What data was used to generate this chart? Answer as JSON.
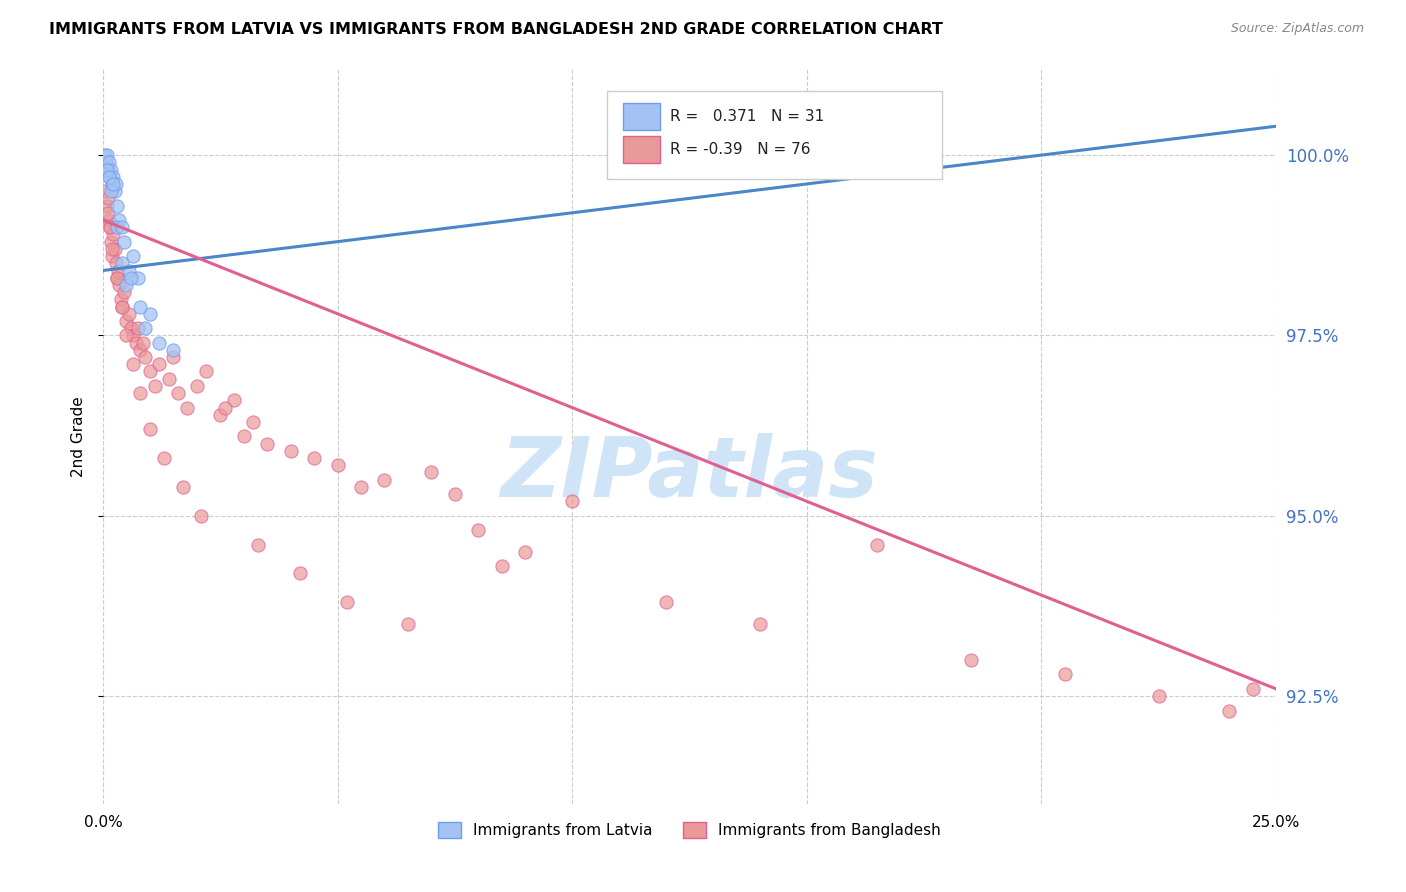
{
  "title": "IMMIGRANTS FROM LATVIA VS IMMIGRANTS FROM BANGLADESH 2ND GRADE CORRELATION CHART",
  "source": "Source: ZipAtlas.com",
  "ylabel": "2nd Grade",
  "yticks": [
    100.0,
    97.5,
    95.0,
    92.5
  ],
  "ytick_labels": [
    "100.0%",
    "97.5%",
    "95.0%",
    "92.5%"
  ],
  "xmin": 0.0,
  "xmax": 25.0,
  "ymin": 91.0,
  "ymax": 101.2,
  "latvia_R": 0.371,
  "latvia_N": 31,
  "bangladesh_R": -0.39,
  "bangladesh_N": 76,
  "latvia_color": "#a4c2f4",
  "bangladesh_color": "#ea9999",
  "latvia_edge_color": "#6d9eeb",
  "bangladesh_edge_color": "#e06090",
  "latvia_line_color": "#4a86c8",
  "bangladesh_line_color": "#e06090",
  "watermark": "ZIPatlas",
  "watermark_color": "#d0e4f7",
  "latvia_line_x0": 0.0,
  "latvia_line_y0": 98.4,
  "latvia_line_x1": 25.0,
  "latvia_line_y1": 100.4,
  "bangladesh_line_x0": 0.0,
  "bangladesh_line_y0": 99.1,
  "bangladesh_line_x1": 25.0,
  "bangladesh_line_y1": 92.6,
  "latvia_x": [
    0.05,
    0.07,
    0.09,
    0.11,
    0.13,
    0.15,
    0.17,
    0.19,
    0.21,
    0.25,
    0.28,
    0.3,
    0.35,
    0.4,
    0.45,
    0.5,
    0.55,
    0.65,
    0.75,
    0.9,
    1.0,
    1.2,
    1.5,
    0.08,
    0.12,
    0.18,
    0.22,
    0.3,
    0.4,
    0.6,
    0.8
  ],
  "latvia_y": [
    100.0,
    99.9,
    100.0,
    99.8,
    99.9,
    99.7,
    99.8,
    99.6,
    99.7,
    99.5,
    99.6,
    99.3,
    99.1,
    98.5,
    98.8,
    98.2,
    98.4,
    98.6,
    98.3,
    97.6,
    97.8,
    97.4,
    97.3,
    99.8,
    99.7,
    99.5,
    99.6,
    99.0,
    99.0,
    98.3,
    97.9
  ],
  "bangladesh_x": [
    0.05,
    0.08,
    0.1,
    0.12,
    0.15,
    0.18,
    0.2,
    0.22,
    0.25,
    0.28,
    0.3,
    0.32,
    0.35,
    0.38,
    0.4,
    0.45,
    0.5,
    0.55,
    0.6,
    0.65,
    0.7,
    0.75,
    0.8,
    0.85,
    0.9,
    1.0,
    1.1,
    1.2,
    1.4,
    1.5,
    1.6,
    1.8,
    2.0,
    2.2,
    2.5,
    2.8,
    3.0,
    3.2,
    3.5,
    4.0,
    4.5,
    5.0,
    5.5,
    6.0,
    7.0,
    7.5,
    8.0,
    0.1,
    0.15,
    0.2,
    0.3,
    0.4,
    0.5,
    0.65,
    0.8,
    1.0,
    1.3,
    1.7,
    2.1,
    2.6,
    3.3,
    4.2,
    5.2,
    6.5,
    8.5,
    10.0,
    12.0,
    14.0,
    16.5,
    18.5,
    20.5,
    22.5,
    24.0,
    24.5,
    9.0
  ],
  "bangladesh_y": [
    99.5,
    99.3,
    99.4,
    99.1,
    99.0,
    98.8,
    98.6,
    98.9,
    98.7,
    98.5,
    98.3,
    98.4,
    98.2,
    98.0,
    97.9,
    98.1,
    97.7,
    97.8,
    97.6,
    97.5,
    97.4,
    97.6,
    97.3,
    97.4,
    97.2,
    97.0,
    96.8,
    97.1,
    96.9,
    97.2,
    96.7,
    96.5,
    96.8,
    97.0,
    96.4,
    96.6,
    96.1,
    96.3,
    96.0,
    95.9,
    95.8,
    95.7,
    95.4,
    95.5,
    95.6,
    95.3,
    94.8,
    99.2,
    99.0,
    98.7,
    98.3,
    97.9,
    97.5,
    97.1,
    96.7,
    96.2,
    95.8,
    95.4,
    95.0,
    96.5,
    94.6,
    94.2,
    93.8,
    93.5,
    94.3,
    95.2,
    93.8,
    93.5,
    94.6,
    93.0,
    92.8,
    92.5,
    92.3,
    92.6,
    94.5
  ]
}
